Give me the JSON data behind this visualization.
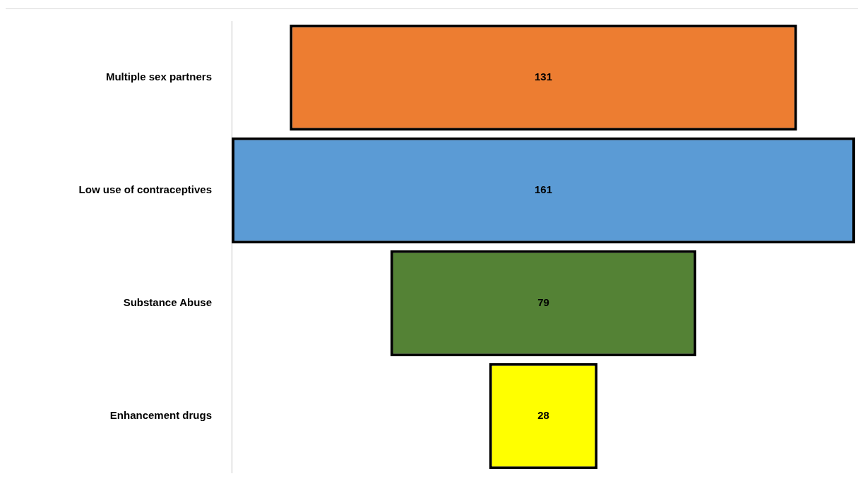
{
  "chart_data": {
    "type": "other",
    "categories": [
      "Multiple sex partners",
      "Low use of contraceptives",
      "Substance Abuse",
      "Enhancement drugs"
    ],
    "values": [
      131,
      161,
      79,
      28
    ],
    "colors": [
      "#ed7d31",
      "#5b9bd5",
      "#548235",
      "#ffff00"
    ],
    "data_labels": true
  }
}
